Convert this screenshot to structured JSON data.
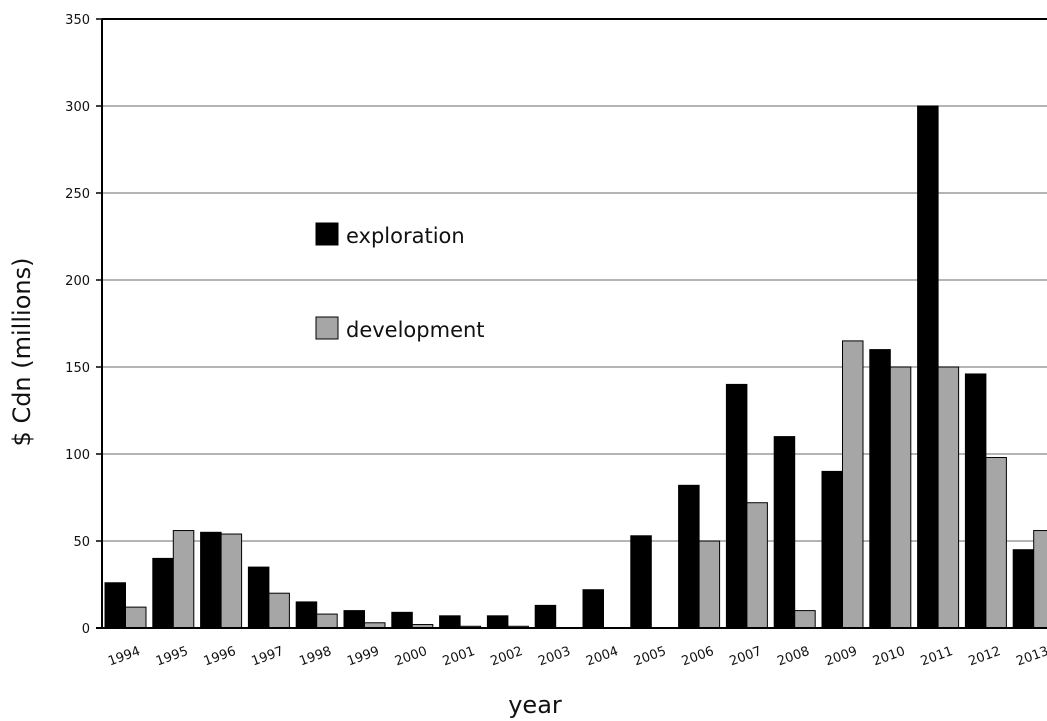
{
  "chart_data": {
    "type": "bar",
    "categories": [
      "1994",
      "1995",
      "1996",
      "1997",
      "1998",
      "1999",
      "2000",
      "2001",
      "2002",
      "2003",
      "2004",
      "2005",
      "2006",
      "2007",
      "2008",
      "2009",
      "2010",
      "2011",
      "2012",
      "2013"
    ],
    "series": [
      {
        "name": "exploration",
        "color": "#000000",
        "values": [
          26,
          40,
          55,
          35,
          15,
          10,
          9,
          7,
          7,
          13,
          22,
          53,
          82,
          140,
          110,
          90,
          160,
          300,
          146,
          45
        ]
      },
      {
        "name": "development",
        "color": "#a6a6a6",
        "values": [
          12,
          56,
          54,
          20,
          8,
          3,
          2,
          1,
          1,
          0,
          0,
          0,
          50,
          72,
          10,
          165,
          150,
          150,
          98,
          56
        ]
      }
    ],
    "title": "",
    "xlabel": "year",
    "ylabel": "$ Cdn (millions)",
    "ylim": [
      0,
      350
    ],
    "yticks": [
      0,
      50,
      100,
      150,
      200,
      250,
      300,
      350
    ],
    "grid": true,
    "legend_position": "upper-left inside plot"
  }
}
